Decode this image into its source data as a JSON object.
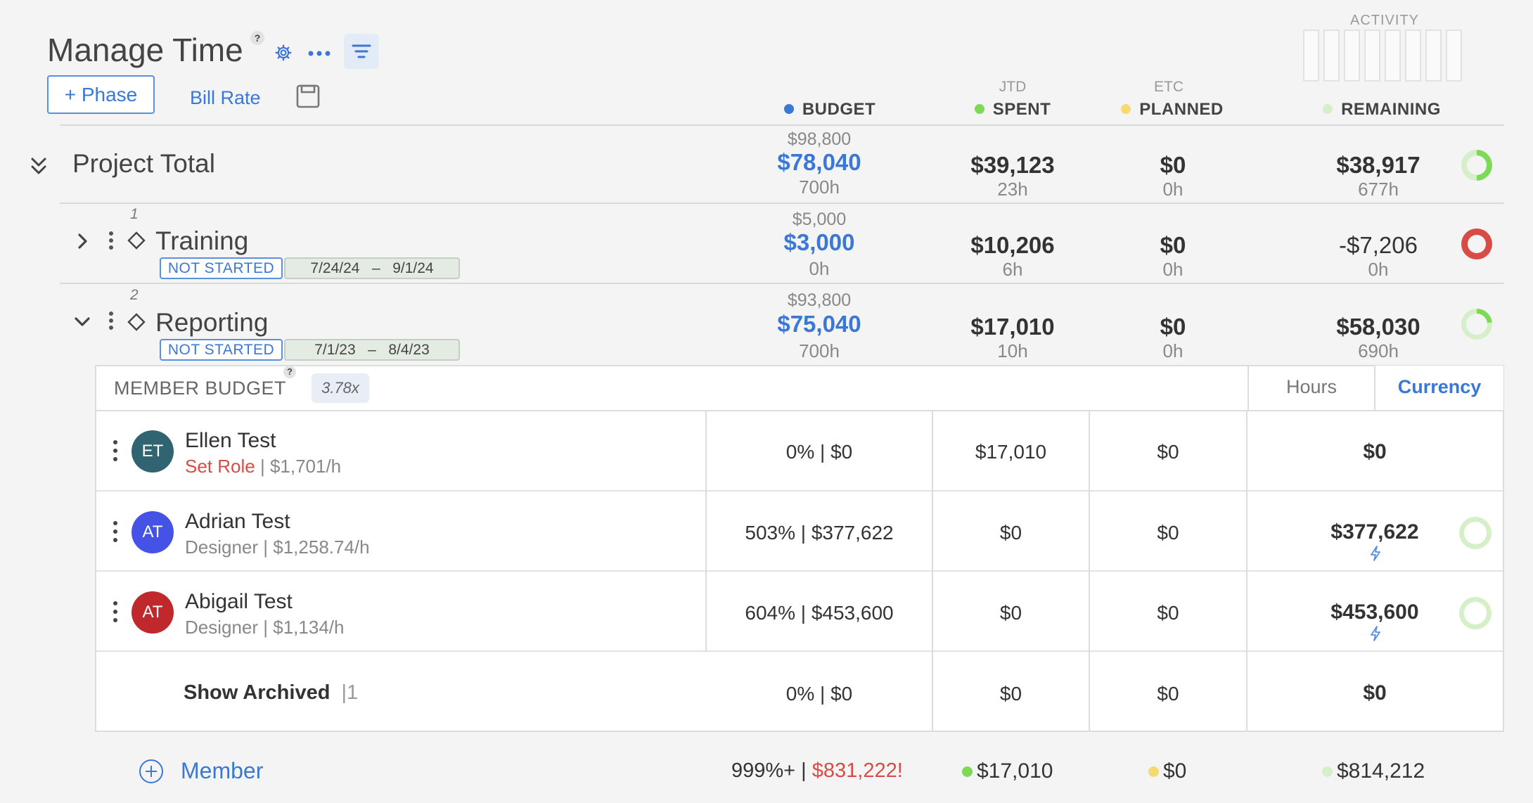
{
  "header": {
    "title": "Manage Time",
    "help": "?",
    "add_phase": "+ Phase",
    "bill_rate": "Bill Rate",
    "activity_label": "ACTIVITY"
  },
  "columns": {
    "budget": "BUDGET",
    "spent_sub": "JTD",
    "spent": "SPENT",
    "planned_sub": "ETC",
    "planned": "PLANNED",
    "remaining": "REMAINING"
  },
  "colors": {
    "budget": "#3a78d6",
    "spent": "#7ed957",
    "planned": "#f7d96e",
    "remaining": "#d5f0c8",
    "negative": "#d84c45"
  },
  "project_total": {
    "label": "Project Total",
    "budget_top": "$98,800",
    "budget": "$78,040",
    "budget_hours": "700h",
    "spent": "$39,123",
    "spent_hours": "23h",
    "planned": "$0",
    "planned_hours": "0h",
    "remaining": "$38,917",
    "remaining_hours": "677h",
    "remaining_ratio": 0.5
  },
  "phases": [
    {
      "index": "1",
      "name": "Training",
      "status": "NOT STARTED",
      "date_start": "7/24/24",
      "date_sep": "–",
      "date_end": "9/1/24",
      "budget_top": "$5,000",
      "budget": "$3,000",
      "budget_hours": "0h",
      "spent": "$10,206",
      "spent_hours": "6h",
      "planned": "$0",
      "planned_hours": "0h",
      "remaining": "-$7,206",
      "remaining_hours": "0h"
    },
    {
      "index": "2",
      "name": "Reporting",
      "status": "NOT STARTED",
      "date_start": "7/1/23",
      "date_sep": "–",
      "date_end": "8/4/23",
      "budget_top": "$93,800",
      "budget": "$75,040",
      "budget_hours": "700h",
      "spent": "$17,010",
      "spent_hours": "10h",
      "planned": "$0",
      "planned_hours": "0h",
      "remaining": "$58,030",
      "remaining_hours": "690h",
      "remaining_ratio": 0.77
    }
  ],
  "member_budget": {
    "label": "MEMBER BUDGET",
    "help": "?",
    "multiplier": "3.78x",
    "toggle_hours": "Hours",
    "toggle_currency": "Currency",
    "members": [
      {
        "initials": "ET",
        "avatar_color": "#2f6470",
        "name": "Ellen Test",
        "role": "Set Role",
        "rate": "$1,701/h",
        "budget": "0%  |  $0",
        "spent": "$17,010",
        "planned": "$0",
        "remaining": "$0"
      },
      {
        "initials": "AT",
        "avatar_color": "#4552e6",
        "name": "Adrian Test",
        "role": "Designer",
        "rate": "$1,258.74/h",
        "budget": "503%  |  $377,622",
        "spent": "$0",
        "planned": "$0",
        "remaining": "$377,622"
      },
      {
        "initials": "AT",
        "avatar_color": "#c0292b",
        "name": "Abigail Test",
        "role": "Designer",
        "rate": "$1,134/h",
        "budget": "604%  |  $453,600",
        "spent": "$0",
        "planned": "$0",
        "remaining": "$453,600"
      }
    ],
    "archived": {
      "label": "Show Archived",
      "count": "|1",
      "budget": "0% | $0",
      "spent": "$0",
      "planned": "$0",
      "remaining": "$0"
    }
  },
  "footer": {
    "add_member": "Member",
    "budget_pct": "999%+ |",
    "budget_total": "$831,222!",
    "spent_total": "$17,010",
    "planned_total": "$0",
    "remaining_total": "$814,212"
  }
}
